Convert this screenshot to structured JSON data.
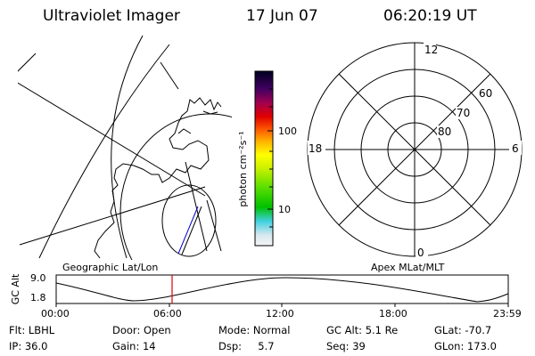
{
  "header": {
    "title": "Ultraviolet Imager",
    "date": "17 Jun 07",
    "time": "06:20:19 UT"
  },
  "colorbar": {
    "unit_label": "photon cm⁻²s⁻¹",
    "tick_100": "100",
    "tick_10": "10"
  },
  "polar": {
    "mlt_top": "12",
    "mlt_left": "18",
    "mlt_right": "6",
    "mlt_bottom": "0",
    "lat_60": "60",
    "lat_70": "70",
    "lat_80": "80"
  },
  "timeline": {
    "left_title": "Geographic Lat/Lon",
    "right_title": "Apex MLat/MLT",
    "axis_label": "GC Alt",
    "y_top": "9.0",
    "y_bottom": "1.8",
    "ticks": [
      "00:00",
      "06:00",
      "12:00",
      "18:00",
      "23:59"
    ],
    "marker_color": "#e00000"
  },
  "status": {
    "flt": "Flt: LBHL",
    "ip": "IP: 36.0",
    "door": "Door: Open",
    "gain": "Gain: 14",
    "mode": "Mode: Normal",
    "dsp": "Dsp:     5.7",
    "gc_alt": "GC Alt: 5.1 Re",
    "seq": "Seq: 39",
    "glat": "GLat: -70.7",
    "glon": "GLon: 173.0"
  }
}
